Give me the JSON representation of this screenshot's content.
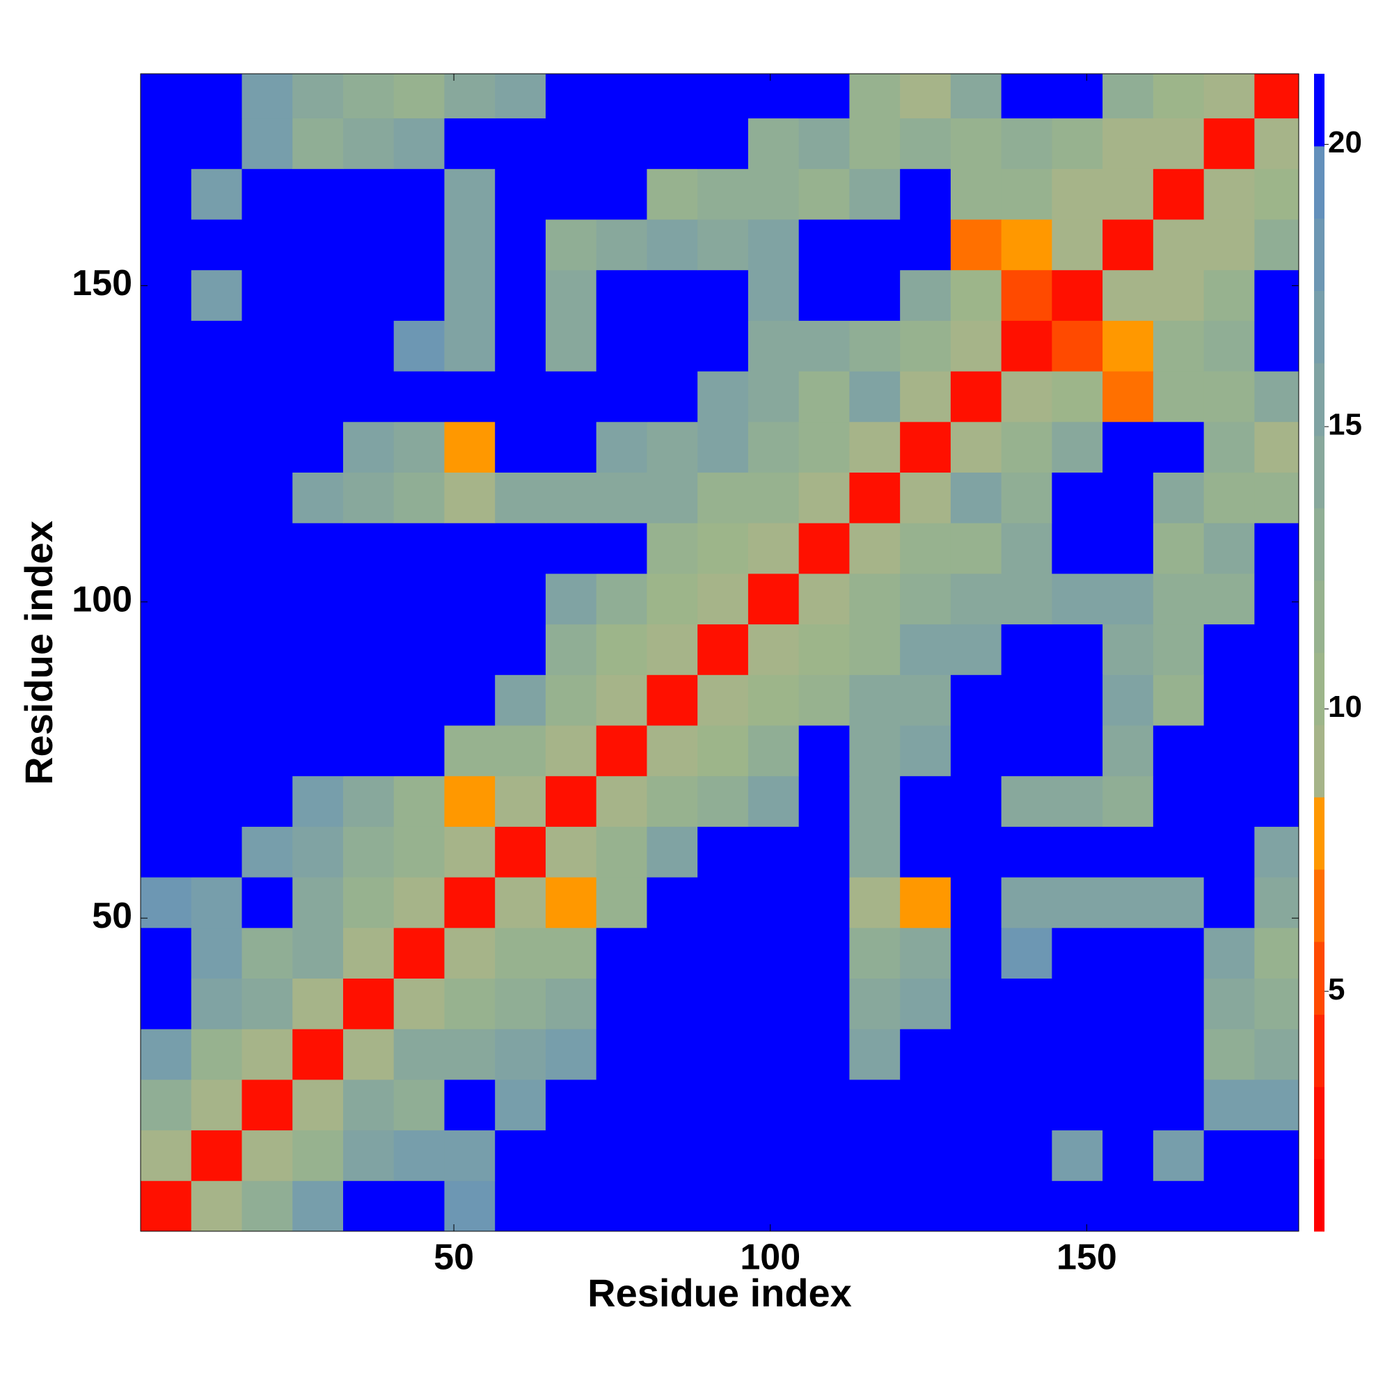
{
  "chart_data": {
    "type": "heatmap",
    "xlabel": "Residue index",
    "ylabel": "Residue index",
    "x": [
      4.5,
      12.5,
      20.5,
      28.5,
      36.5,
      44.5,
      52.5,
      60.5,
      68.5,
      76.5,
      84.5,
      92.5,
      100.5,
      108.5,
      116.5,
      124.5,
      132.5,
      140.5,
      148.5,
      156.5,
      164.5,
      172.5,
      180.5
    ],
    "y": [
      4.5,
      12.5,
      20.5,
      28.5,
      36.5,
      44.5,
      52.5,
      60.5,
      68.5,
      76.5,
      84.5,
      92.5,
      100.5,
      108.5,
      116.5,
      124.5,
      132.5,
      140.5,
      148.5,
      156.5,
      164.5,
      172.5,
      180.5
    ],
    "z": [
      [
        3,
        9,
        13,
        17,
        21,
        21,
        18,
        21,
        21,
        21,
        21,
        21,
        21,
        21,
        21,
        21,
        21,
        21,
        21,
        21,
        21,
        21,
        21
      ],
      [
        9,
        3,
        9,
        12,
        15,
        17,
        17,
        21,
        21,
        21,
        21,
        21,
        21,
        21,
        21,
        21,
        21,
        21,
        17,
        21,
        17,
        21,
        21
      ],
      [
        13,
        9,
        3,
        9,
        14,
        13,
        21,
        17,
        21,
        21,
        21,
        21,
        21,
        21,
        21,
        21,
        21,
        21,
        21,
        21,
        21,
        17,
        17
      ],
      [
        17,
        12,
        9,
        3,
        9,
        14,
        14,
        16,
        17,
        21,
        21,
        21,
        21,
        21,
        16,
        21,
        21,
        21,
        21,
        21,
        21,
        13,
        14
      ],
      [
        21,
        15,
        14,
        9,
        3,
        9,
        11,
        13,
        14,
        21,
        21,
        21,
        21,
        21,
        14,
        15,
        21,
        21,
        21,
        21,
        21,
        14,
        13
      ],
      [
        21,
        17,
        13,
        14,
        9,
        3,
        9,
        12,
        12,
        21,
        21,
        21,
        21,
        21,
        13,
        14,
        21,
        18,
        21,
        21,
        21,
        15,
        11
      ],
      [
        18,
        17,
        21,
        14,
        11,
        9,
        3,
        9,
        8,
        12,
        21,
        21,
        21,
        21,
        9,
        8,
        21,
        15,
        15,
        16,
        16,
        21,
        14
      ],
      [
        21,
        21,
        17,
        16,
        13,
        12,
        9,
        3,
        9,
        11,
        15,
        21,
        21,
        21,
        14,
        21,
        21,
        21,
        21,
        21,
        21,
        21,
        16
      ],
      [
        21,
        21,
        21,
        17,
        14,
        12,
        8,
        9,
        3,
        9,
        12,
        13,
        16,
        21,
        14,
        21,
        21,
        14,
        14,
        13,
        21,
        21,
        21
      ],
      [
        21,
        21,
        21,
        21,
        21,
        21,
        12,
        11,
        9,
        3,
        9,
        10,
        13,
        21,
        14,
        16,
        21,
        21,
        21,
        14,
        21,
        21,
        21
      ],
      [
        21,
        21,
        21,
        21,
        21,
        21,
        21,
        15,
        12,
        9,
        3,
        9,
        10,
        12,
        14,
        14,
        21,
        21,
        21,
        15,
        12,
        21,
        21
      ],
      [
        21,
        21,
        21,
        21,
        21,
        21,
        21,
        21,
        13,
        10,
        9,
        3,
        9,
        10,
        12,
        15,
        15,
        21,
        21,
        14,
        13,
        21,
        21
      ],
      [
        21,
        21,
        21,
        21,
        21,
        21,
        21,
        21,
        16,
        13,
        10,
        9,
        3,
        9,
        11,
        13,
        14,
        14,
        16,
        15,
        13,
        13,
        21
      ],
      [
        21,
        21,
        21,
        21,
        21,
        21,
        21,
        21,
        21,
        21,
        12,
        10,
        9,
        3,
        9,
        11,
        11,
        14,
        21,
        21,
        12,
        14,
        21
      ],
      [
        21,
        21,
        21,
        16,
        14,
        13,
        9,
        14,
        14,
        14,
        14,
        12,
        11,
        9,
        3,
        9,
        16,
        13,
        21,
        21,
        14,
        12,
        12
      ],
      [
        21,
        21,
        21,
        21,
        15,
        14,
        8,
        21,
        21,
        16,
        14,
        15,
        13,
        11,
        9,
        3,
        9,
        12,
        14,
        21,
        21,
        13,
        9
      ],
      [
        21,
        21,
        21,
        21,
        21,
        21,
        21,
        21,
        21,
        21,
        21,
        15,
        14,
        11,
        16,
        9,
        3,
        9,
        10,
        7,
        11,
        12,
        14
      ],
      [
        21,
        21,
        21,
        21,
        21,
        18,
        15,
        21,
        14,
        21,
        21,
        21,
        14,
        14,
        13,
        12,
        9,
        3,
        5,
        8,
        11,
        13,
        21
      ],
      [
        21,
        17,
        21,
        21,
        21,
        21,
        15,
        21,
        14,
        21,
        21,
        21,
        16,
        21,
        21,
        14,
        10,
        5,
        3,
        9,
        9,
        11,
        21
      ],
      [
        21,
        21,
        21,
        21,
        21,
        21,
        16,
        21,
        13,
        14,
        15,
        14,
        15,
        21,
        21,
        21,
        7,
        8,
        9,
        3,
        9,
        9,
        13
      ],
      [
        21,
        17,
        21,
        21,
        21,
        21,
        16,
        21,
        21,
        21,
        12,
        13,
        13,
        12,
        14,
        21,
        11,
        11,
        9,
        9,
        3,
        9,
        10
      ],
      [
        21,
        21,
        17,
        13,
        14,
        15,
        21,
        21,
        21,
        21,
        21,
        21,
        13,
        14,
        12,
        13,
        12,
        13,
        11,
        9,
        9,
        3,
        9
      ],
      [
        21,
        21,
        17,
        14,
        13,
        11,
        14,
        16,
        21,
        21,
        21,
        21,
        21,
        21,
        12,
        9,
        14,
        21,
        21,
        13,
        10,
        9,
        3
      ]
    ],
    "xlim": [
      0.5,
      183.5
    ],
    "ylim": [
      0.5,
      183.5
    ],
    "xticks": [
      50,
      100,
      150
    ],
    "yticks": [
      50,
      100,
      150
    ],
    "colorbar": {
      "lim": [
        0.75,
        21.25
      ],
      "ticks": [
        5,
        10,
        15,
        20
      ],
      "bounds": [
        0.75,
        2.03,
        3.31,
        4.59,
        5.88,
        7.16,
        8.44,
        9.72,
        11.0,
        12.28,
        13.56,
        14.84,
        16.13,
        17.41,
        18.69,
        19.97,
        21.25
      ],
      "colors": [
        "#ff0000",
        "#ff1000",
        "#ff2800",
        "#ff4a00",
        "#ff7000",
        "#ff9800",
        "#a6b489",
        "#9db58a",
        "#97b28f",
        "#90ae95",
        "#88a89c",
        "#80a3a3",
        "#779eab",
        "#6d97b3",
        "#6390bb",
        "#0000ff"
      ]
    }
  }
}
